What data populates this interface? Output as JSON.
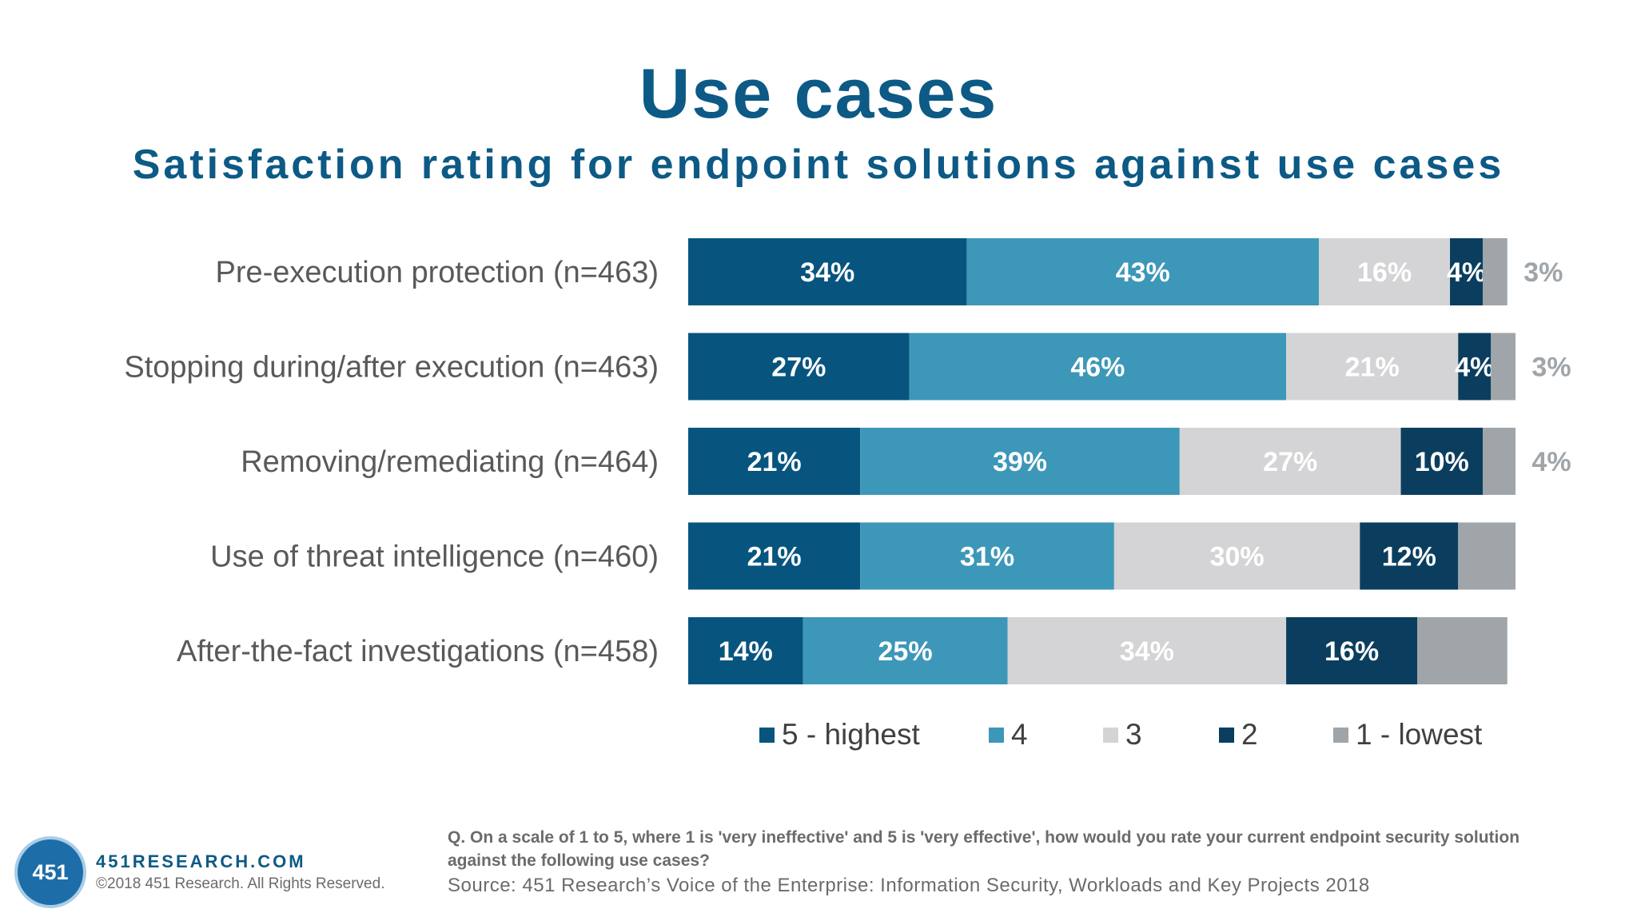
{
  "header": {
    "title": "Use cases",
    "subtitle": "Satisfaction rating for endpoint solutions against use cases"
  },
  "chart_data": {
    "type": "bar",
    "orientation": "horizontal",
    "stacked": true,
    "categories": [
      "Pre-execution protection (n=463)",
      "Stopping during/after execution (n=463)",
      "Removing/remediating (n=464)",
      "Use of threat intelligence (n=460)",
      "After-the-fact investigations (n=458)"
    ],
    "series": [
      {
        "name": "5 - highest",
        "color": "#07557f",
        "label_color": "#ffffff",
        "values": [
          34,
          27,
          21,
          21,
          14
        ]
      },
      {
        "name": "4",
        "color": "#3d97b9",
        "label_color": "#ffffff",
        "values": [
          43,
          46,
          39,
          31,
          25
        ]
      },
      {
        "name": "3",
        "color": "#d4d4d6",
        "label_color": "#ffffff",
        "values": [
          16,
          21,
          27,
          30,
          34
        ]
      },
      {
        "name": "2",
        "color": "#0b3e5e",
        "label_color": "#ffffff",
        "values": [
          4,
          4,
          10,
          12,
          16
        ]
      },
      {
        "name": "1 - lowest",
        "color": "#a0a5a9",
        "label_color": "#a0a5a9",
        "values": [
          3,
          3,
          4,
          7,
          11
        ]
      }
    ],
    "value_suffix": "%",
    "xlim": [
      0,
      101
    ],
    "grid": false,
    "legend_position": "bottom"
  },
  "footer": {
    "logo_text": "451",
    "site": "451RESEARCH.COM",
    "copyright": "©2018 451 Research. All Rights Reserved.",
    "question": "Q. On a scale of 1 to 5, where 1 is 'very ineffective' and 5 is 'very effective', how would you rate your current endpoint security solution against the following use cases?",
    "source": "Source: 451 Research’s Voice of the Enterprise: Information Security, Workloads and Key Projects 2018"
  }
}
